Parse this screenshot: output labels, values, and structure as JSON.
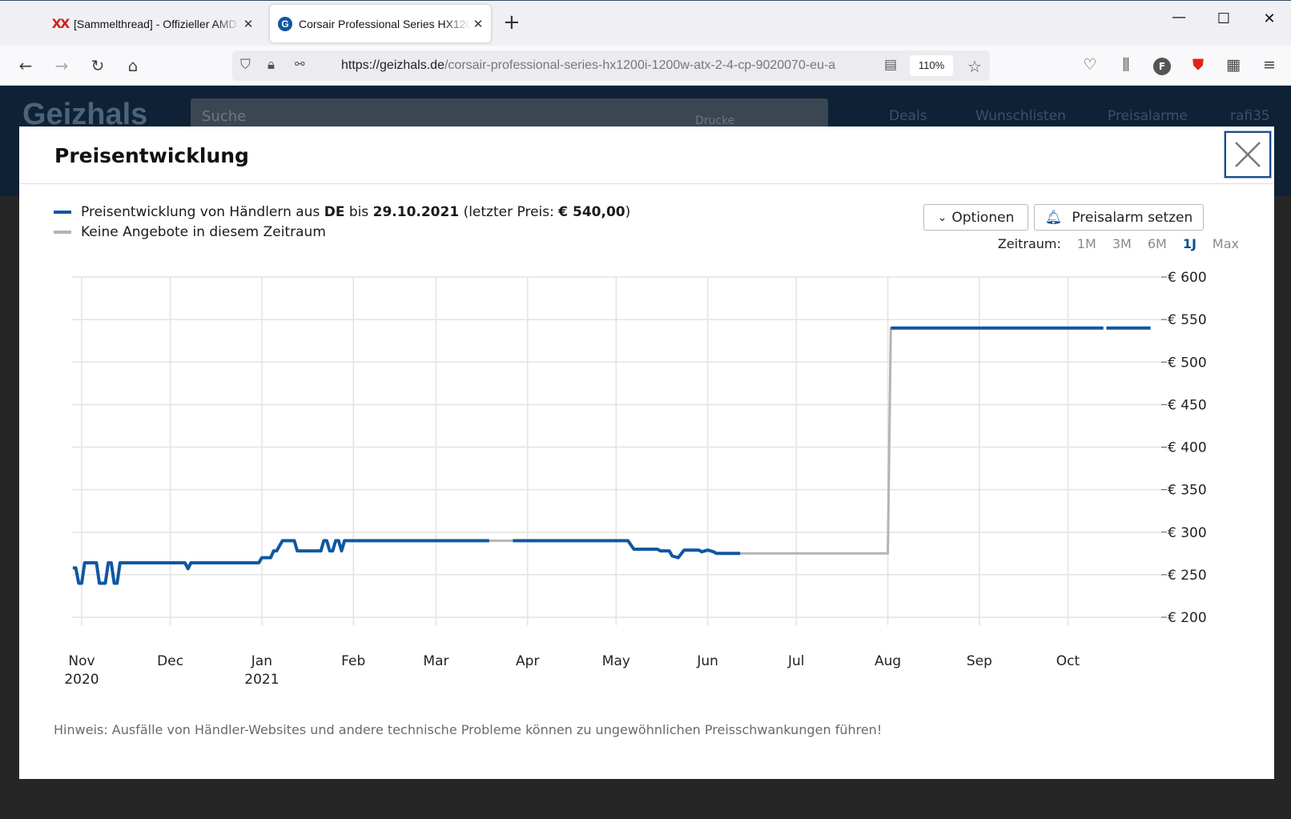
{
  "browser": {
    "tabs": [
      {
        "title": "[Sammelthread] - Offizieller AMD",
        "favicon": "xx-icon"
      },
      {
        "title": "Corsair Professional Series HX1200i",
        "favicon": "geizhals-icon"
      }
    ],
    "url_host": "https://geizhals.de",
    "url_path": "/corsair-professional-series-hx1200i-1200w-atx-2-4-cp-9020070-eu-a",
    "zoom": "110%",
    "profile_initial": "F"
  },
  "site": {
    "logo": "Geizhals",
    "search_placeholder": "Suche",
    "search_hint": "Drucke",
    "links": [
      "Deals",
      "Wunschlisten",
      "Preisalarme",
      "rafi35"
    ]
  },
  "modal": {
    "title": "Preisentwicklung",
    "legend_price_pre": "Preisentwicklung von Händlern aus ",
    "legend_price_country": "DE",
    "legend_price_mid": " bis ",
    "legend_price_date": "29.10.2021",
    "legend_price_last_pre": " (letzter Preis: ",
    "legend_price_last": "€ 540,00",
    "legend_price_post": ")",
    "legend_gap": "Keine Angebote in diesem Zeitraum",
    "options_label": "Optionen",
    "alarm_label": "Preisalarm setzen",
    "zeitraum_label": "Zeitraum:",
    "zeitraum_options": [
      "1M",
      "3M",
      "6M",
      "1J",
      "Max"
    ],
    "zeitraum_selected": "1J",
    "note": "Hinweis: Ausfälle von Händler-Websites und andere technische Probleme können zu ungewöhnlichen Preisschwankungen führen!"
  },
  "colors": {
    "price_line": "#0f57a1",
    "gap_line": "#b4b4b4",
    "accent": "#0f4f94"
  },
  "chart_data": {
    "type": "line",
    "title": "",
    "ylim": [
      200,
      600
    ],
    "y_ticks": [
      "€ 200",
      "€ 250",
      "€ 300",
      "€ 350",
      "€ 400",
      "€ 450",
      "€ 500",
      "€ 550",
      "€ 600"
    ],
    "y_tick_values": [
      200,
      250,
      300,
      350,
      400,
      450,
      500,
      550,
      600
    ],
    "x_ticks": [
      {
        "date": "2020-11-01",
        "label": "Nov",
        "sub": "2020"
      },
      {
        "date": "2020-12-01",
        "label": "Dec",
        "sub": ""
      },
      {
        "date": "2021-01-01",
        "label": "Jan",
        "sub": "2021"
      },
      {
        "date": "2021-02-01",
        "label": "Feb",
        "sub": ""
      },
      {
        "date": "2021-03-01",
        "label": "Mar",
        "sub": ""
      },
      {
        "date": "2021-04-01",
        "label": "Apr",
        "sub": ""
      },
      {
        "date": "2021-05-01",
        "label": "May",
        "sub": ""
      },
      {
        "date": "2021-06-01",
        "label": "Jun",
        "sub": ""
      },
      {
        "date": "2021-07-01",
        "label": "Jul",
        "sub": ""
      },
      {
        "date": "2021-08-01",
        "label": "Aug",
        "sub": ""
      },
      {
        "date": "2021-09-01",
        "label": "Sep",
        "sub": ""
      },
      {
        "date": "2021-10-01",
        "label": "Oct",
        "sub": ""
      }
    ],
    "grid": true,
    "series": [
      {
        "kind": "price",
        "segments": [
          [
            [
              "2020-10-29",
              258
            ],
            [
              "2020-10-30",
              258
            ],
            [
              "2020-10-31",
              240
            ],
            [
              "2020-11-01",
              240
            ],
            [
              "2020-11-02",
              264
            ],
            [
              "2020-11-06",
              264
            ],
            [
              "2020-11-07",
              240
            ],
            [
              "2020-11-09",
              240
            ],
            [
              "2020-11-10",
              264
            ],
            [
              "2020-11-11",
              264
            ],
            [
              "2020-11-12",
              240
            ],
            [
              "2020-11-13",
              240
            ],
            [
              "2020-11-14",
              264
            ],
            [
              "2020-12-06",
              264
            ],
            [
              "2020-12-07",
              257
            ],
            [
              "2020-12-08",
              264
            ],
            [
              "2020-12-31",
              264
            ],
            [
              "2021-01-01",
              270
            ],
            [
              "2021-01-04",
              270
            ],
            [
              "2021-01-05",
              278
            ],
            [
              "2021-01-06",
              278
            ],
            [
              "2021-01-08",
              290
            ],
            [
              "2021-01-12",
              290
            ],
            [
              "2021-01-13",
              278
            ],
            [
              "2021-01-21",
              278
            ],
            [
              "2021-01-22",
              290
            ],
            [
              "2021-01-23",
              290
            ],
            [
              "2021-01-24",
              278
            ],
            [
              "2021-01-25",
              278
            ],
            [
              "2021-01-26",
              290
            ],
            [
              "2021-01-27",
              290
            ],
            [
              "2021-01-28",
              278
            ],
            [
              "2021-01-29",
              290
            ],
            [
              "2021-03-19",
              290
            ]
          ],
          [
            [
              "2021-03-27",
              290
            ],
            [
              "2021-05-05",
              290
            ],
            [
              "2021-05-07",
              280
            ],
            [
              "2021-05-15",
              280
            ],
            [
              "2021-05-16",
              278
            ],
            [
              "2021-05-19",
              278
            ],
            [
              "2021-05-20",
              272
            ],
            [
              "2021-05-22",
              270
            ],
            [
              "2021-05-24",
              279
            ],
            [
              "2021-05-29",
              279
            ],
            [
              "2021-05-30",
              277
            ],
            [
              "2021-06-01",
              279
            ],
            [
              "2021-06-03",
              277
            ],
            [
              "2021-06-04",
              275
            ],
            [
              "2021-06-12",
              275
            ]
          ]
        ]
      },
      {
        "kind": "gap",
        "segments": [
          [
            [
              "2021-03-19",
              290
            ],
            [
              "2021-03-27",
              290
            ]
          ],
          [
            [
              "2021-06-12",
              275
            ],
            [
              "2021-08-01",
              275
            ],
            [
              "2021-08-02",
              540
            ],
            [
              "2021-10-13",
              540
            ]
          ]
        ]
      },
      {
        "kind": "price",
        "segments": [
          [
            [
              "2021-08-02",
              540
            ],
            [
              "2021-10-13",
              540
            ]
          ],
          [
            [
              "2021-10-14",
              540
            ],
            [
              "2021-10-29",
              540
            ]
          ]
        ]
      }
    ]
  }
}
